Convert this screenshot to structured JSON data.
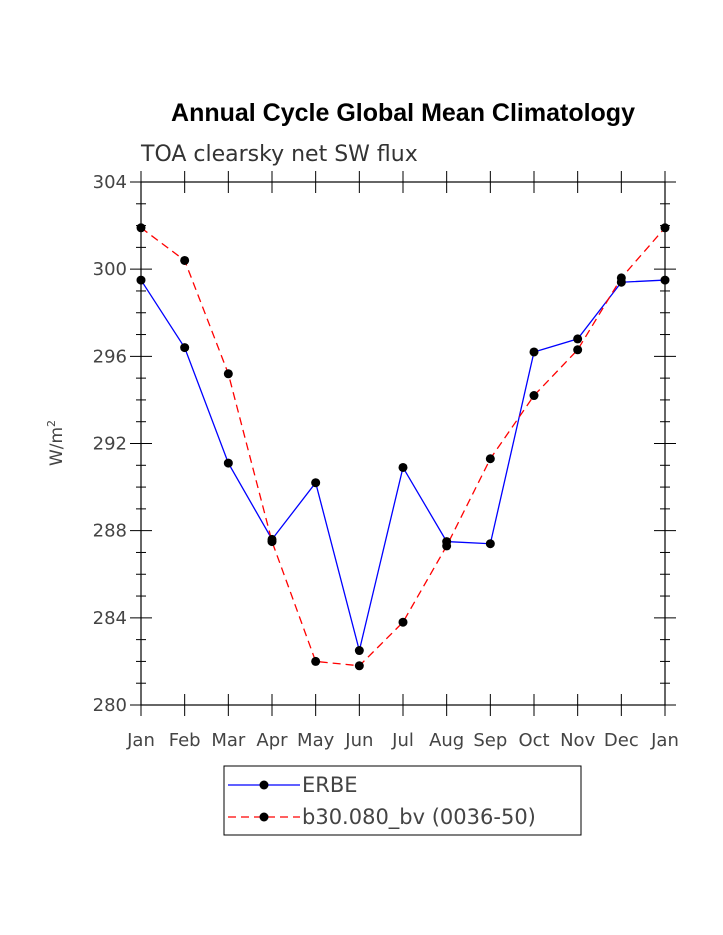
{
  "chart_data": {
    "type": "line",
    "title": "Annual Cycle Global Mean Climatology",
    "subtitle": "TOA clearsky net SW flux",
    "ylabel": "W/m",
    "ylabel_superscript": "2",
    "xlabel": "",
    "categories": [
      "Jan",
      "Feb",
      "Mar",
      "Apr",
      "May",
      "Jun",
      "Jul",
      "Aug",
      "Sep",
      "Oct",
      "Nov",
      "Dec",
      "Jan"
    ],
    "ylim": [
      280,
      304
    ],
    "yticks": [
      280,
      284,
      288,
      292,
      296,
      300,
      304
    ],
    "grid": false,
    "legend_position": "bottom-center",
    "series": [
      {
        "name": "ERBE",
        "color": "#0000ff",
        "style": "solid",
        "values": [
          299.5,
          296.4,
          291.1,
          287.6,
          290.2,
          282.5,
          290.9,
          287.5,
          287.4,
          296.2,
          296.8,
          299.4,
          299.5
        ]
      },
      {
        "name": "b30.080_bv (0036-50)",
        "color": "#ff0000",
        "style": "dashed",
        "values": [
          301.9,
          300.4,
          295.2,
          287.5,
          282.0,
          281.8,
          283.8,
          287.3,
          291.3,
          294.2,
          296.3,
          299.6,
          301.9
        ]
      }
    ]
  }
}
